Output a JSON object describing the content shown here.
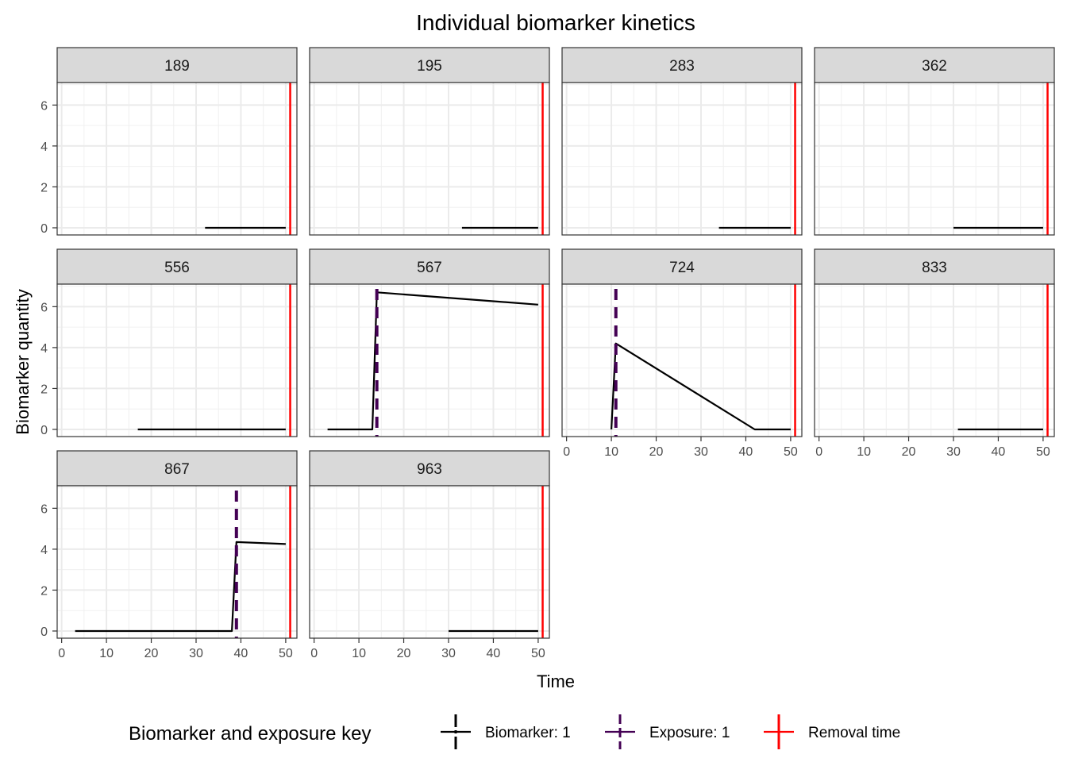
{
  "chart_data": {
    "type": "line",
    "title": "Individual biomarker kinetics",
    "xlabel": "Time",
    "ylabel": "Biomarker quantity",
    "xlim": [
      -1,
      52.5
    ],
    "ylim": [
      -0.35,
      7.1
    ],
    "x_ticks": [
      0,
      10,
      20,
      30,
      40,
      50
    ],
    "y_ticks": [
      0,
      2,
      4,
      6
    ],
    "grid": true,
    "legend_position": "bottom",
    "colors": {
      "biomarker": "#000000",
      "exposure": "#440154",
      "removal": "#ff0000"
    },
    "legend": {
      "title": "Biomarker and exposure key",
      "entries": [
        {
          "key": "biomarker",
          "label": "Biomarker: 1"
        },
        {
          "key": "exposure",
          "label": "Exposure: 1"
        },
        {
          "key": "removal",
          "label": "Removal time"
        }
      ]
    },
    "panels": [
      {
        "id": "189",
        "biomarker": {
          "x": [
            32,
            50
          ],
          "y": [
            0,
            0
          ]
        },
        "exposures": [],
        "removal": 51
      },
      {
        "id": "195",
        "biomarker": {
          "x": [
            33,
            50
          ],
          "y": [
            0,
            0
          ]
        },
        "exposures": [],
        "removal": 51
      },
      {
        "id": "283",
        "biomarker": {
          "x": [
            34,
            50
          ],
          "y": [
            0,
            0
          ]
        },
        "exposures": [],
        "removal": 51
      },
      {
        "id": "362",
        "biomarker": {
          "x": [
            30,
            50
          ],
          "y": [
            0,
            0
          ]
        },
        "exposures": [],
        "removal": 51
      },
      {
        "id": "556",
        "biomarker": {
          "x": [
            17,
            50
          ],
          "y": [
            0,
            0
          ]
        },
        "exposures": [],
        "removal": 51
      },
      {
        "id": "567",
        "biomarker": {
          "x": [
            3,
            13,
            14,
            50
          ],
          "y": [
            0,
            0,
            6.7,
            6.1
          ]
        },
        "exposures": [
          14
        ],
        "removal": 51
      },
      {
        "id": "724",
        "biomarker": {
          "x": [
            10,
            11,
            42,
            50
          ],
          "y": [
            0,
            4.2,
            0,
            0
          ]
        },
        "exposures": [
          11
        ],
        "removal": 51
      },
      {
        "id": "833",
        "biomarker": {
          "x": [
            31,
            50
          ],
          "y": [
            0,
            0
          ]
        },
        "exposures": [],
        "removal": 51
      },
      {
        "id": "867",
        "biomarker": {
          "x": [
            3,
            38,
            39,
            50
          ],
          "y": [
            0,
            0,
            4.35,
            4.25
          ]
        },
        "exposures": [
          39
        ],
        "removal": 51
      },
      {
        "id": "963",
        "biomarker": {
          "x": [
            30,
            50
          ],
          "y": [
            0,
            0
          ]
        },
        "exposures": [],
        "removal": 51
      }
    ]
  }
}
